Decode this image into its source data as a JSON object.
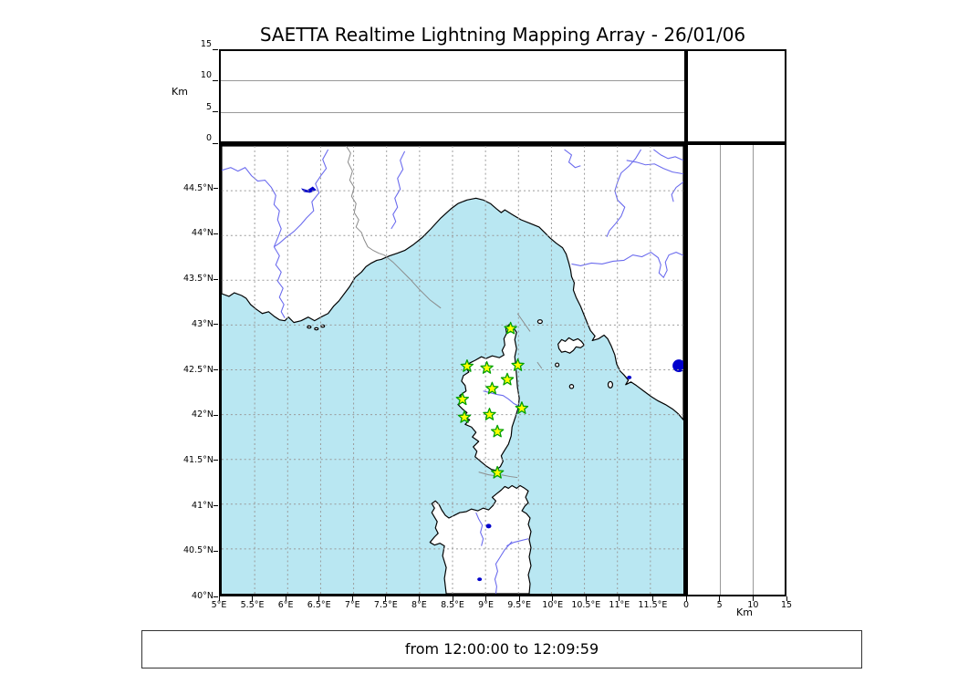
{
  "title": "SAETTA Realtime Lightning Mapping Array - 26/01/06",
  "footer": {
    "time_range": "from 12:00:00 to 12:09:59"
  },
  "altitude_axis": {
    "label": "Km",
    "max_km": 15,
    "ticks": [
      {
        "label": "0",
        "value": 0
      },
      {
        "label": "5",
        "value": 5
      },
      {
        "label": "10",
        "value": 10
      },
      {
        "label": "15",
        "value": 15
      }
    ],
    "gridlines_km": [
      5,
      10
    ]
  },
  "map": {
    "lon_range": [
      5,
      12
    ],
    "lat_range": [
      40,
      45
    ],
    "lon_ticks": [
      {
        "label": "5°E",
        "value": 5
      },
      {
        "label": "5.5°E",
        "value": 5.5
      },
      {
        "label": "6°E",
        "value": 6
      },
      {
        "label": "6.5°E",
        "value": 6.5
      },
      {
        "label": "7°E",
        "value": 7
      },
      {
        "label": "7.5°E",
        "value": 7.5
      },
      {
        "label": "8°E",
        "value": 8
      },
      {
        "label": "8.5°E",
        "value": 8.5
      },
      {
        "label": "9°E",
        "value": 9
      },
      {
        "label": "9.5°E",
        "value": 9.5
      },
      {
        "label": "10°E",
        "value": 10
      },
      {
        "label": "10.5°E",
        "value": 10.5
      },
      {
        "label": "11°E",
        "value": 11
      },
      {
        "label": "11.5°E",
        "value": 11.5
      }
    ],
    "lat_ticks": [
      {
        "label": "44.5°N",
        "value": 44.5
      },
      {
        "label": "44°N",
        "value": 44
      },
      {
        "label": "43.5°N",
        "value": 43.5
      },
      {
        "label": "43°N",
        "value": 43
      },
      {
        "label": "42.5°N",
        "value": 42.5
      },
      {
        "label": "42°N",
        "value": 42
      },
      {
        "label": "41.5°N",
        "value": 41.5
      },
      {
        "label": "41°N",
        "value": 41
      },
      {
        "label": "40.5°N",
        "value": 40.5
      },
      {
        "label": "40°N",
        "value": 40
      }
    ],
    "stations": [
      {
        "lon": 9.38,
        "lat": 42.96
      },
      {
        "lon": 8.72,
        "lat": 42.54
      },
      {
        "lon": 9.02,
        "lat": 42.52
      },
      {
        "lon": 9.49,
        "lat": 42.55
      },
      {
        "lon": 9.33,
        "lat": 42.39
      },
      {
        "lon": 9.1,
        "lat": 42.29
      },
      {
        "lon": 8.65,
        "lat": 42.17
      },
      {
        "lon": 9.55,
        "lat": 42.07
      },
      {
        "lon": 9.06,
        "lat": 42.0
      },
      {
        "lon": 8.68,
        "lat": 41.97
      },
      {
        "lon": 9.18,
        "lat": 41.81
      },
      {
        "lon": 9.18,
        "lat": 41.35
      }
    ]
  },
  "colors": {
    "sea": "#b9e7f2",
    "land": "#ffffff",
    "coast": "#000000",
    "river": "#6b6bee",
    "lake": "#0000cc",
    "grid": "#999999",
    "boundary": "#8a8a8a",
    "station_fill": "#ffff00",
    "station_edge": "#00a000"
  }
}
